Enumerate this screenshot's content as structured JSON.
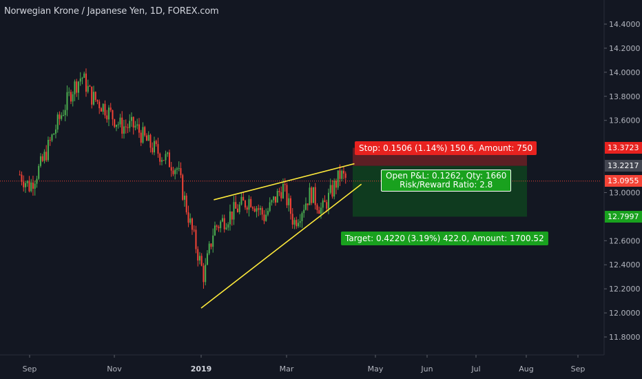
{
  "header": {
    "title": "Norwegian Krone / Japanese Yen, 1D, FOREX.com"
  },
  "colors": {
    "background": "#131722",
    "bull": "#4caf50",
    "bear": "#f44336",
    "trendline": "#ffeb3b",
    "stop_zone": "#5c1f24",
    "target_zone": "#0f3b1f",
    "stop_label": "#e8221f",
    "target_label": "#19a11e",
    "pnl_label": "#19a11e",
    "current_price": "#f44336",
    "entry_price": "#5d606b"
  },
  "price_axis": {
    "ticks": [
      "14.4000",
      "14.2000",
      "14.0000",
      "13.8000",
      "13.6000",
      "13.0000",
      "12.6000",
      "12.4000",
      "12.2000",
      "12.0000",
      "11.8000"
    ],
    "tick_values": [
      14.4,
      14.2,
      14.0,
      13.8,
      13.6,
      13.0,
      12.6,
      12.4,
      12.2,
      12.0,
      11.8
    ],
    "badges": [
      {
        "label": "13.3723",
        "value": 13.3723,
        "color": "#e8221f"
      },
      {
        "label": "13.2217",
        "value": 13.2217,
        "color": "#434651"
      },
      {
        "label": "13.0955",
        "value": 13.0955,
        "color": "#f44336"
      },
      {
        "label": "12.7997",
        "value": 12.7997,
        "color": "#19a11e"
      }
    ]
  },
  "time_axis": {
    "labels": [
      {
        "text": "Sep",
        "strong": false
      },
      {
        "text": "Nov",
        "strong": false
      },
      {
        "text": "2019",
        "strong": true
      },
      {
        "text": "Mar",
        "strong": false
      },
      {
        "text": "May",
        "strong": false
      },
      {
        "text": "Jun",
        "strong": false
      },
      {
        "text": "Jul",
        "strong": false
      },
      {
        "text": "Aug",
        "strong": false
      },
      {
        "text": "Sep",
        "strong": false
      }
    ]
  },
  "position": {
    "stop_label": "Stop: 0.1506 (1.14%) 150.6, Amount: 750",
    "pnl_label_line1": "Open P&L: 0.1262, Qty: 1660",
    "pnl_label_line2": "Risk/Reward Ratio: 2.8",
    "target_label": "Target: 0.4220 (3.19%) 422.0, Amount: 1700.52",
    "entry": 13.2217,
    "stop": 13.3723,
    "target": 12.7997,
    "current": 13.0955
  },
  "chart_data": {
    "type": "candlestick",
    "title": "Norwegian Krone / Japanese Yen, 1D, FOREX.com",
    "ylim": [
      11.78,
      14.55
    ],
    "x_labels": [
      "Sep",
      "Nov",
      "2019",
      "Mar",
      "May",
      "Jun",
      "Jul",
      "Aug",
      "Sep"
    ],
    "close_series": [
      {
        "x": "2018-08-25",
        "y": 13.15
      },
      {
        "x": "2018-09-01",
        "y": 13.05
      },
      {
        "x": "2018-09-10",
        "y": 13.25
      },
      {
        "x": "2018-09-20",
        "y": 13.55
      },
      {
        "x": "2018-10-01",
        "y": 13.85
      },
      {
        "x": "2018-10-08",
        "y": 13.97
      },
      {
        "x": "2018-10-15",
        "y": 13.8
      },
      {
        "x": "2018-10-25",
        "y": 13.7
      },
      {
        "x": "2018-11-05",
        "y": 13.55
      },
      {
        "x": "2018-11-15",
        "y": 13.55
      },
      {
        "x": "2018-11-25",
        "y": 13.4
      },
      {
        "x": "2018-12-05",
        "y": 13.3
      },
      {
        "x": "2018-12-15",
        "y": 13.2
      },
      {
        "x": "2018-12-24",
        "y": 12.75
      },
      {
        "x": "2019-01-03",
        "y": 12.3
      },
      {
        "x": "2019-01-10",
        "y": 12.7
      },
      {
        "x": "2019-01-25",
        "y": 12.85
      },
      {
        "x": "2019-02-05",
        "y": 12.95
      },
      {
        "x": "2019-02-15",
        "y": 12.8
      },
      {
        "x": "2019-02-28",
        "y": 13.05
      },
      {
        "x": "2019-03-08",
        "y": 12.75
      },
      {
        "x": "2019-03-20",
        "y": 13.0
      },
      {
        "x": "2019-03-28",
        "y": 12.85
      },
      {
        "x": "2019-04-10",
        "y": 13.15
      },
      {
        "x": "2019-04-15",
        "y": 13.1
      }
    ],
    "trendlines": [
      {
        "name": "upper",
        "from": {
          "x": "2019-01-10",
          "y": 12.94
        },
        "to": {
          "x": "2019-04-20",
          "y": 13.24
        }
      },
      {
        "name": "lower",
        "from": {
          "x": "2019-01-01",
          "y": 12.04
        },
        "to": {
          "x": "2019-04-25",
          "y": 13.07
        }
      }
    ],
    "grid": false
  }
}
